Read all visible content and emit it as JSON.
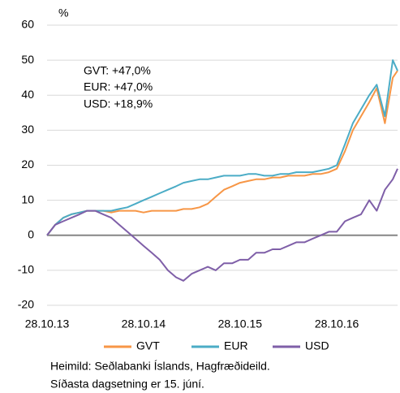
{
  "chart_data": {
    "type": "line",
    "y_unit_label": "%",
    "annotations": [
      "GVT: +47,0%",
      "EUR: +47,0%",
      "USD: +18,9%"
    ],
    "footnotes": [
      "Heimild: Seðlabanki Íslands, Hagfræðideild.",
      "Síðasta dagsetning er 15. júní."
    ],
    "x": [
      "2013-10-28",
      "2013-11-28",
      "2013-12-28",
      "2014-01-28",
      "2014-02-28",
      "2014-03-28",
      "2014-04-28",
      "2014-05-28",
      "2014-06-28",
      "2014-07-28",
      "2014-08-28",
      "2014-09-28",
      "2014-10-28",
      "2014-11-28",
      "2014-12-28",
      "2015-01-28",
      "2015-02-28",
      "2015-03-28",
      "2015-04-28",
      "2015-05-28",
      "2015-06-28",
      "2015-07-28",
      "2015-08-28",
      "2015-09-28",
      "2015-10-28",
      "2015-11-28",
      "2015-12-28",
      "2016-01-28",
      "2016-02-28",
      "2016-03-28",
      "2016-04-28",
      "2016-05-28",
      "2016-06-28",
      "2016-07-28",
      "2016-08-28",
      "2016-09-28",
      "2016-10-28",
      "2016-11-28",
      "2016-12-28",
      "2017-01-28",
      "2017-02-28",
      "2017-03-28",
      "2017-04-28",
      "2017-05-28",
      "2017-06-15"
    ],
    "series": [
      {
        "name": "GVT",
        "color": "#f79646",
        "values": [
          0,
          3,
          5,
          6,
          6.5,
          7,
          7,
          7,
          6.5,
          7,
          7,
          7,
          6.5,
          7,
          7,
          7,
          7,
          7.5,
          7.5,
          8,
          9,
          11,
          13,
          14,
          15,
          15.5,
          16,
          16,
          16.5,
          16.5,
          17,
          17,
          17,
          17.5,
          17.5,
          18,
          19,
          24,
          30,
          34,
          38,
          42,
          32,
          45,
          47
        ]
      },
      {
        "name": "EUR",
        "color": "#4bacc6",
        "values": [
          0,
          3,
          5,
          6,
          6.5,
          7,
          7,
          7,
          7,
          7.5,
          8,
          9,
          10,
          11,
          12,
          13,
          14,
          15,
          15.5,
          16,
          16,
          16.5,
          17,
          17,
          17,
          17.5,
          17.5,
          17,
          17,
          17.5,
          17.5,
          18,
          18,
          18,
          18.5,
          19,
          20,
          26,
          32,
          36,
          40,
          43,
          34,
          50,
          47
        ]
      },
      {
        "name": "USD",
        "color": "#7f5fa8",
        "values": [
          0,
          3,
          4,
          5,
          6,
          7,
          7,
          6,
          5,
          3,
          1,
          -1,
          -3,
          -5,
          -7,
          -10,
          -12,
          -13,
          -11,
          -10,
          -9,
          -10,
          -8,
          -8,
          -7,
          -7,
          -5,
          -5,
          -4,
          -4,
          -3,
          -2,
          -2,
          -1,
          0,
          1,
          1,
          4,
          5,
          6,
          10,
          7,
          13,
          16,
          19
        ]
      }
    ],
    "xlim": [
      "2013-10-28",
      "2017-06-15"
    ],
    "xticks": [
      {
        "value": "2013-10-28",
        "label": "28.10.13"
      },
      {
        "value": "2014-10-28",
        "label": "28.10.14"
      },
      {
        "value": "2015-10-28",
        "label": "28.10.15"
      },
      {
        "value": "2016-10-28",
        "label": "28.10.16"
      }
    ],
    "ylim": [
      -20,
      60
    ],
    "yticks": [
      -20,
      -10,
      0,
      10,
      20,
      30,
      40,
      50,
      60
    ],
    "grid": true,
    "legend": "bottom"
  }
}
